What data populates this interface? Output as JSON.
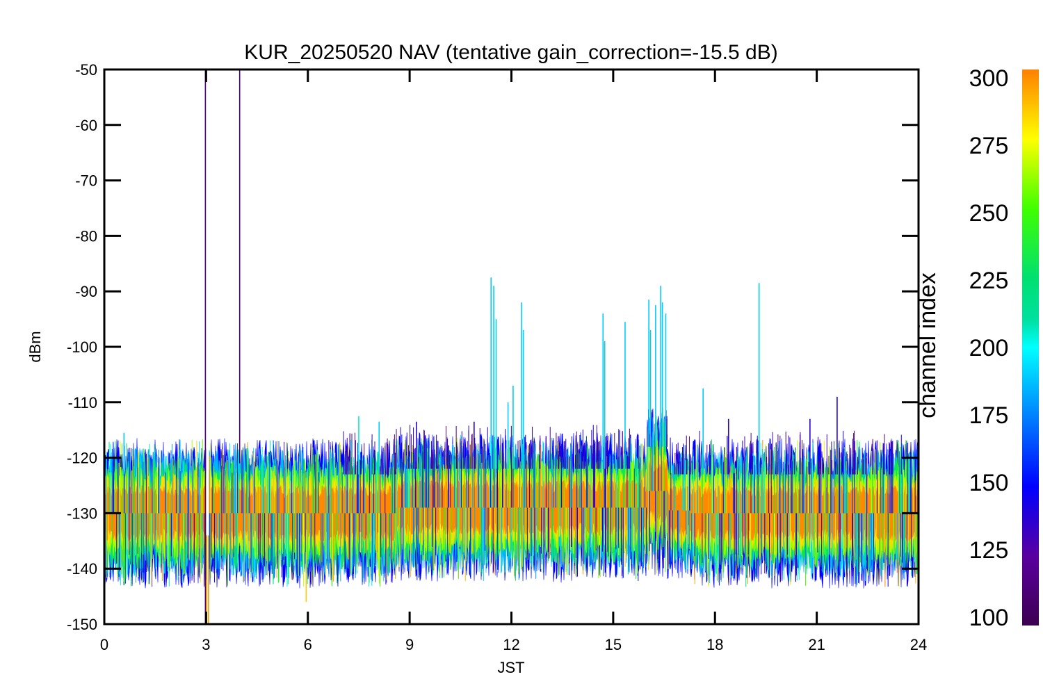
{
  "chart_data": {
    "type": "line",
    "title": "KUR_20250520 NAV (tentative gain_correction=-15.5 dB)",
    "xlabel": "JST",
    "ylabel": "dBm",
    "xlim": [
      0,
      24
    ],
    "ylim": [
      -150,
      -50
    ],
    "xticks": [
      0,
      3,
      6,
      9,
      12,
      15,
      18,
      21,
      24
    ],
    "xtick_labels": [
      "0",
      "3",
      "6",
      "9",
      "12",
      "15",
      "18",
      "21",
      "24"
    ],
    "yticks": [
      -50,
      -60,
      -70,
      -80,
      -90,
      -100,
      -110,
      -120,
      -130,
      -140,
      -150
    ],
    "ytick_labels": [
      "-50",
      "-60",
      "-70",
      "-80",
      "-90",
      "-100",
      "-110",
      "-120",
      "-130",
      "-140",
      "-150"
    ],
    "grid": false,
    "colorbar": {
      "label": "channel index",
      "range": [
        100,
        300
      ],
      "ticks": [
        100,
        125,
        150,
        175,
        200,
        225,
        250,
        275,
        300
      ],
      "tick_labels": [
        "100",
        "125",
        "150",
        "175",
        "200",
        "225",
        "250",
        "275",
        "300"
      ],
      "colors": [
        "#3d0050",
        "#5a00a0",
        "#0000ff",
        "#0080ff",
        "#00ffff",
        "#00e070",
        "#40ff00",
        "#ffff00",
        "#ff8000"
      ]
    },
    "band_median_dBm": -130,
    "band_halfwidth_dBm": 7,
    "level_segments": [
      {
        "x0": 0,
        "x1": 8.6,
        "center": -130,
        "halfwidth": 7
      },
      {
        "x0": 8.6,
        "x1": 16.0,
        "center": -129,
        "halfwidth": 7
      },
      {
        "x0": 16.0,
        "x1": 16.6,
        "center": -126,
        "halfwidth": 8
      },
      {
        "x0": 16.6,
        "x1": 17.3,
        "center": -129.5,
        "halfwidth": 6.5
      },
      {
        "x0": 17.3,
        "x1": 24,
        "center": -130,
        "halfwidth": 7
      }
    ],
    "data_gap": {
      "x0": 3.0,
      "x1": 3.08
    },
    "spikes": [
      {
        "x": 2.98,
        "y": -50,
        "ymin": -150,
        "channel": 110
      },
      {
        "x": 3.99,
        "y": -50,
        "ymin": -121,
        "channel": 110
      },
      {
        "x": 3.02,
        "y": -150,
        "ymin": -134,
        "channel": 295
      },
      {
        "x": 3.07,
        "y": -150,
        "ymin": -134,
        "channel": 295
      },
      {
        "x": 11.4,
        "y": -87.5,
        "channel": 190
      },
      {
        "x": 11.48,
        "y": -89,
        "channel": 190
      },
      {
        "x": 11.55,
        "y": -95,
        "channel": 190
      },
      {
        "x": 12.3,
        "y": -92,
        "channel": 190
      },
      {
        "x": 12.35,
        "y": -97,
        "channel": 190
      },
      {
        "x": 11.9,
        "y": -110,
        "channel": 190
      },
      {
        "x": 12.05,
        "y": -107,
        "channel": 190
      },
      {
        "x": 14.7,
        "y": -94,
        "channel": 190
      },
      {
        "x": 14.75,
        "y": -99,
        "channel": 190
      },
      {
        "x": 15.35,
        "y": -95.5,
        "channel": 190
      },
      {
        "x": 16.05,
        "y": -91.5,
        "channel": 190
      },
      {
        "x": 16.1,
        "y": -97,
        "channel": 190
      },
      {
        "x": 16.25,
        "y": -92.5,
        "channel": 190
      },
      {
        "x": 16.4,
        "y": -89,
        "channel": 190
      },
      {
        "x": 16.45,
        "y": -92,
        "channel": 190
      },
      {
        "x": 16.55,
        "y": -94,
        "channel": 190
      },
      {
        "x": 17.65,
        "y": -107.5,
        "channel": 190
      },
      {
        "x": 19.3,
        "y": -88.5,
        "channel": 190
      },
      {
        "x": 21.6,
        "y": -109,
        "channel": 140
      },
      {
        "x": 20.8,
        "y": -113,
        "channel": 140
      },
      {
        "x": 9.2,
        "y": -113.5,
        "channel": 140
      },
      {
        "x": 7.5,
        "y": -112.5,
        "channel": 210
      },
      {
        "x": 8.1,
        "y": -113.5,
        "channel": 190
      },
      {
        "x": 10.9,
        "y": -113.5,
        "channel": 140
      },
      {
        "x": 18.4,
        "y": -113,
        "channel": 140
      },
      {
        "x": 0.58,
        "y": -115.5,
        "channel": 190
      },
      {
        "x": 23.4,
        "y": -117,
        "channel": 250
      },
      {
        "x": 5.95,
        "y": -146,
        "ymin": -137,
        "channel": 285
      }
    ]
  }
}
